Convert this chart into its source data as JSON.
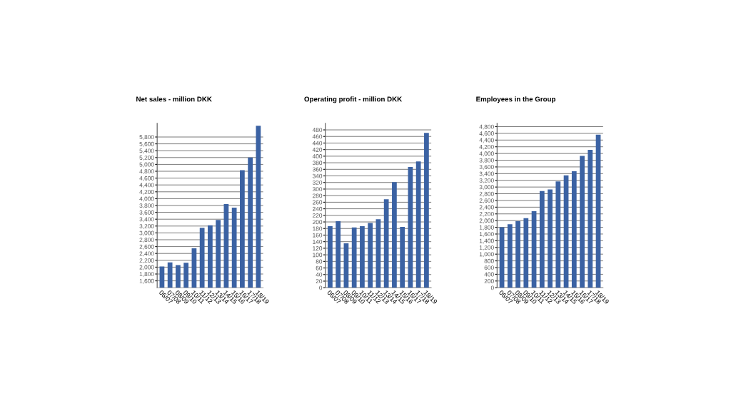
{
  "chart_data": [
    {
      "type": "bar",
      "title": "Net sales - million DKK",
      "categories": [
        "06/07",
        "07/08",
        "08/09",
        "09/10",
        "10/11",
        "11/12",
        "12/13",
        "13/14",
        "14/15",
        "15/16",
        "16/17",
        "17/18",
        "18/19"
      ],
      "values": [
        2020,
        2140,
        2060,
        2130,
        2550,
        3150,
        3220,
        3380,
        3840,
        3740,
        4830,
        5200,
        6130
      ],
      "color": "#3b62a3",
      "ylim": [
        1400,
        6200
      ],
      "yticks": [
        {
          "value": 1600,
          "label": "1,600"
        },
        {
          "value": 1800,
          "label": "1,800"
        },
        {
          "value": 2000,
          "label": "2,000"
        },
        {
          "value": 2200,
          "label": "2,200"
        },
        {
          "value": 2400,
          "label": "2,400"
        },
        {
          "value": 2600,
          "label": "2,600"
        },
        {
          "value": 2800,
          "label": "2,800"
        },
        {
          "value": 3000,
          "label": "3,000"
        },
        {
          "value": 3200,
          "label": "3,200"
        },
        {
          "value": 3400,
          "label": "3,400"
        },
        {
          "value": 3600,
          "label": "3,600"
        },
        {
          "value": 3800,
          "label": "3,800"
        },
        {
          "value": 4000,
          "label": "4,000"
        },
        {
          "value": 4200,
          "label": "4,200"
        },
        {
          "value": 4400,
          "label": "4,400"
        },
        {
          "value": 4600,
          "label": "4,600"
        },
        {
          "value": 4800,
          "label": "4,800"
        },
        {
          "value": 5000,
          "label": "5,000"
        },
        {
          "value": 5200,
          "label": "5,200"
        },
        {
          "value": 5400,
          "label": "5,400"
        },
        {
          "value": 5600,
          "label": "5,600"
        },
        {
          "value": 5800,
          "label": "5,800"
        }
      ],
      "grid": "y"
    },
    {
      "type": "bar",
      "title": "Operating profit - million DKK",
      "categories": [
        "06/07",
        "07/08",
        "08/09",
        "09/10",
        "10/11",
        "11/12",
        "12/13",
        "13/14",
        "14/15",
        "15/16",
        "16/17",
        "17/18",
        "18/19"
      ],
      "values": [
        187,
        202,
        135,
        183,
        187,
        197,
        208,
        269,
        321,
        185,
        367,
        384,
        471
      ],
      "color": "#3b62a3",
      "ylim": [
        0,
        500
      ],
      "yticks": [
        0,
        20,
        40,
        60,
        80,
        100,
        120,
        140,
        160,
        180,
        200,
        220,
        240,
        260,
        280,
        300,
        320,
        340,
        360,
        380,
        400,
        420,
        440,
        460,
        480
      ],
      "grid": "y"
    },
    {
      "type": "bar",
      "title": "Employees in the Group",
      "categories": [
        "06/07",
        "07/08",
        "08/09",
        "09/10",
        "10/11",
        "11/12",
        "12/13",
        "13/14",
        "14/15",
        "15/16",
        "16/17",
        "17/18",
        "18/19"
      ],
      "values": [
        1800,
        1890,
        1980,
        2070,
        2280,
        2880,
        2930,
        3170,
        3350,
        3470,
        3930,
        4110,
        4560
      ],
      "color": "#3b62a3",
      "ylim": [
        0,
        4900
      ],
      "yticks": [
        0,
        200,
        400,
        600,
        800,
        {
          "value": 1000,
          "label": "1,000"
        },
        {
          "value": 1200,
          "label": "1,200"
        },
        {
          "value": 1400,
          "label": "1,400"
        },
        {
          "value": 1600,
          "label": "1,600"
        },
        {
          "value": 1800,
          "label": "1,800"
        },
        {
          "value": 2000,
          "label": "2,000"
        },
        {
          "value": 2200,
          "label": "2,200"
        },
        {
          "value": 2400,
          "label": "2,400"
        },
        {
          "value": 2600,
          "label": "2,600"
        },
        {
          "value": 2800,
          "label": "2,800"
        },
        {
          "value": 3000,
          "label": "3,000"
        },
        {
          "value": 3200,
          "label": "3,200"
        },
        {
          "value": 3400,
          "label": "3,400"
        },
        {
          "value": 3600,
          "label": "3,600"
        },
        {
          "value": 3800,
          "label": "3,800"
        },
        {
          "value": 4000,
          "label": "4,000"
        },
        {
          "value": 4200,
          "label": "4,200"
        },
        {
          "value": 4400,
          "label": "4,400"
        },
        {
          "value": 4600,
          "label": "4,600"
        },
        {
          "value": 4800,
          "label": "4,800"
        }
      ],
      "grid": "y"
    }
  ]
}
